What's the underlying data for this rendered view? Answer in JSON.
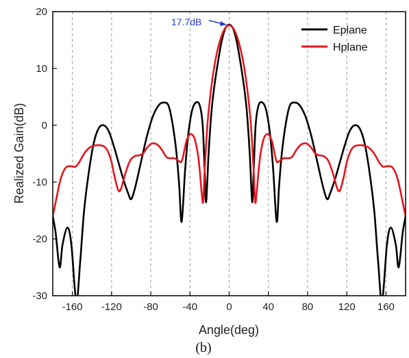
{
  "chart_data": {
    "type": "line",
    "xlabel": "Angle(deg)",
    "ylabel": "Realized Gain(dB)",
    "caption": "(b)",
    "xlim": [
      -180,
      180
    ],
    "ylim": [
      -30,
      20
    ],
    "xticks": [
      -160,
      -120,
      -80,
      -40,
      0,
      40,
      80,
      120,
      160
    ],
    "yticks": [
      -30,
      -20,
      -10,
      0,
      10,
      20
    ],
    "grid": "vertical dashed",
    "legend_position": "top-right",
    "annotation": {
      "text": "17.7dB",
      "x": 0,
      "y": 17.7,
      "color": "#1f3fd6"
    },
    "series": [
      {
        "name": "Eplane",
        "color": "#000000",
        "points": [
          [
            -180,
            -16
          ],
          [
            -177,
            -19
          ],
          [
            -173,
            -25
          ],
          [
            -170,
            -21
          ],
          [
            -165,
            -18
          ],
          [
            -161,
            -21
          ],
          [
            -156,
            -31
          ],
          [
            -152,
            -24
          ],
          [
            -148,
            -15
          ],
          [
            -143,
            -8
          ],
          [
            -138,
            -3
          ],
          [
            -133,
            -0.5
          ],
          [
            -128,
            0
          ],
          [
            -123,
            -1
          ],
          [
            -118,
            -3.5
          ],
          [
            -113,
            -6.5
          ],
          [
            -108,
            -9.5
          ],
          [
            -103,
            -12
          ],
          [
            -100,
            -13
          ],
          [
            -96,
            -11
          ],
          [
            -90,
            -6.5
          ],
          [
            -84,
            -2
          ],
          [
            -78,
            1.5
          ],
          [
            -72,
            3.5
          ],
          [
            -67,
            4
          ],
          [
            -62,
            3.5
          ],
          [
            -58,
            0.5
          ],
          [
            -54,
            -4.5
          ],
          [
            -51,
            -10.5
          ],
          [
            -48.5,
            -17
          ],
          [
            -45,
            -8
          ],
          [
            -42,
            -2
          ],
          [
            -38,
            2.5
          ],
          [
            -34,
            4
          ],
          [
            -30,
            3.5
          ],
          [
            -27,
            0
          ],
          [
            -25,
            -8
          ],
          [
            -23.5,
            -13.5
          ],
          [
            -21,
            -5
          ],
          [
            -18,
            2.5
          ],
          [
            -15,
            7
          ],
          [
            -12,
            10.5
          ],
          [
            -8,
            14.5
          ],
          [
            -4,
            17
          ],
          [
            0,
            17.7
          ],
          [
            4,
            17
          ],
          [
            8,
            14.5
          ],
          [
            12,
            10.5
          ],
          [
            15,
            7
          ],
          [
            18,
            2.5
          ],
          [
            21,
            -5
          ],
          [
            23.5,
            -13.5
          ],
          [
            25,
            -8
          ],
          [
            27,
            0
          ],
          [
            30,
            3.5
          ],
          [
            34,
            4
          ],
          [
            38,
            2.5
          ],
          [
            42,
            -2
          ],
          [
            45,
            -8
          ],
          [
            48.5,
            -17
          ],
          [
            51,
            -10.5
          ],
          [
            54,
            -4.5
          ],
          [
            58,
            0.5
          ],
          [
            62,
            3.5
          ],
          [
            67,
            4
          ],
          [
            72,
            3.5
          ],
          [
            78,
            1.5
          ],
          [
            84,
            -2
          ],
          [
            90,
            -6.5
          ],
          [
            96,
            -11
          ],
          [
            100,
            -13
          ],
          [
            103,
            -12
          ],
          [
            108,
            -9.5
          ],
          [
            113,
            -6.5
          ],
          [
            118,
            -3.5
          ],
          [
            123,
            -1
          ],
          [
            128,
            0
          ],
          [
            133,
            -0.5
          ],
          [
            138,
            -3
          ],
          [
            143,
            -8
          ],
          [
            148,
            -15
          ],
          [
            152,
            -24
          ],
          [
            156,
            -31
          ],
          [
            161,
            -21
          ],
          [
            165,
            -18
          ],
          [
            170,
            -21
          ],
          [
            173,
            -25
          ],
          [
            177,
            -19
          ],
          [
            180,
            -16
          ]
        ]
      },
      {
        "name": "Hplane",
        "color": "#e8141c",
        "points": [
          [
            -180,
            -16
          ],
          [
            -177,
            -13.5
          ],
          [
            -172,
            -9.5
          ],
          [
            -167,
            -7.5
          ],
          [
            -162,
            -7.2
          ],
          [
            -157,
            -7.3
          ],
          [
            -153,
            -6.5
          ],
          [
            -148,
            -5
          ],
          [
            -143,
            -4
          ],
          [
            -138,
            -3.6
          ],
          [
            -133,
            -3.5
          ],
          [
            -128,
            -3.7
          ],
          [
            -124,
            -4.5
          ],
          [
            -120,
            -6.5
          ],
          [
            -117,
            -9
          ],
          [
            -113,
            -11.5
          ],
          [
            -110,
            -11
          ],
          [
            -106,
            -8.5
          ],
          [
            -101,
            -6.2
          ],
          [
            -96,
            -5.4
          ],
          [
            -92,
            -5.3
          ],
          [
            -88,
            -5
          ],
          [
            -84,
            -4
          ],
          [
            -80,
            -3.3
          ],
          [
            -76,
            -3.2
          ],
          [
            -72,
            -3.6
          ],
          [
            -68,
            -4.5
          ],
          [
            -64,
            -5.6
          ],
          [
            -60,
            -5.8
          ],
          [
            -56,
            -5.8
          ],
          [
            -52,
            -6.2
          ],
          [
            -49,
            -6.5
          ],
          [
            -47,
            -5.5
          ],
          [
            -44,
            -3
          ],
          [
            -41,
            -1.8
          ],
          [
            -38,
            -1.6
          ],
          [
            -35,
            -2.5
          ],
          [
            -32,
            -5
          ],
          [
            -30,
            -8
          ],
          [
            -28,
            -12
          ],
          [
            -26.5,
            -13.5
          ],
          [
            -25,
            -8
          ],
          [
            -22,
            0.5
          ],
          [
            -18,
            7
          ],
          [
            -14,
            11.5
          ],
          [
            -10,
            14.5
          ],
          [
            -6,
            16.5
          ],
          [
            -3,
            17.3
          ],
          [
            0,
            17.6
          ],
          [
            3,
            17.3
          ],
          [
            6,
            16.5
          ],
          [
            10,
            14.5
          ],
          [
            14,
            11.5
          ],
          [
            18,
            7
          ],
          [
            22,
            0.5
          ],
          [
            25,
            -8
          ],
          [
            26.5,
            -13.5
          ],
          [
            28,
            -12
          ],
          [
            30,
            -8
          ],
          [
            32,
            -5
          ],
          [
            35,
            -2.5
          ],
          [
            38,
            -1.6
          ],
          [
            41,
            -1.8
          ],
          [
            44,
            -3
          ],
          [
            47,
            -5.5
          ],
          [
            49,
            -6.5
          ],
          [
            52,
            -6.2
          ],
          [
            56,
            -5.8
          ],
          [
            60,
            -5.8
          ],
          [
            64,
            -5.6
          ],
          [
            68,
            -4.5
          ],
          [
            72,
            -3.6
          ],
          [
            76,
            -3.2
          ],
          [
            80,
            -3.3
          ],
          [
            84,
            -4
          ],
          [
            88,
            -5
          ],
          [
            92,
            -5.3
          ],
          [
            96,
            -5.4
          ],
          [
            101,
            -6.2
          ],
          [
            106,
            -8.5
          ],
          [
            110,
            -11
          ],
          [
            113,
            -11.5
          ],
          [
            117,
            -9
          ],
          [
            120,
            -6.5
          ],
          [
            124,
            -4.5
          ],
          [
            128,
            -3.7
          ],
          [
            133,
            -3.5
          ],
          [
            138,
            -3.6
          ],
          [
            143,
            -4
          ],
          [
            148,
            -5
          ],
          [
            153,
            -6.5
          ],
          [
            157,
            -7.3
          ],
          [
            162,
            -7.2
          ],
          [
            167,
            -7.5
          ],
          [
            172,
            -9.5
          ],
          [
            177,
            -13.5
          ],
          [
            180,
            -16
          ]
        ]
      }
    ]
  }
}
